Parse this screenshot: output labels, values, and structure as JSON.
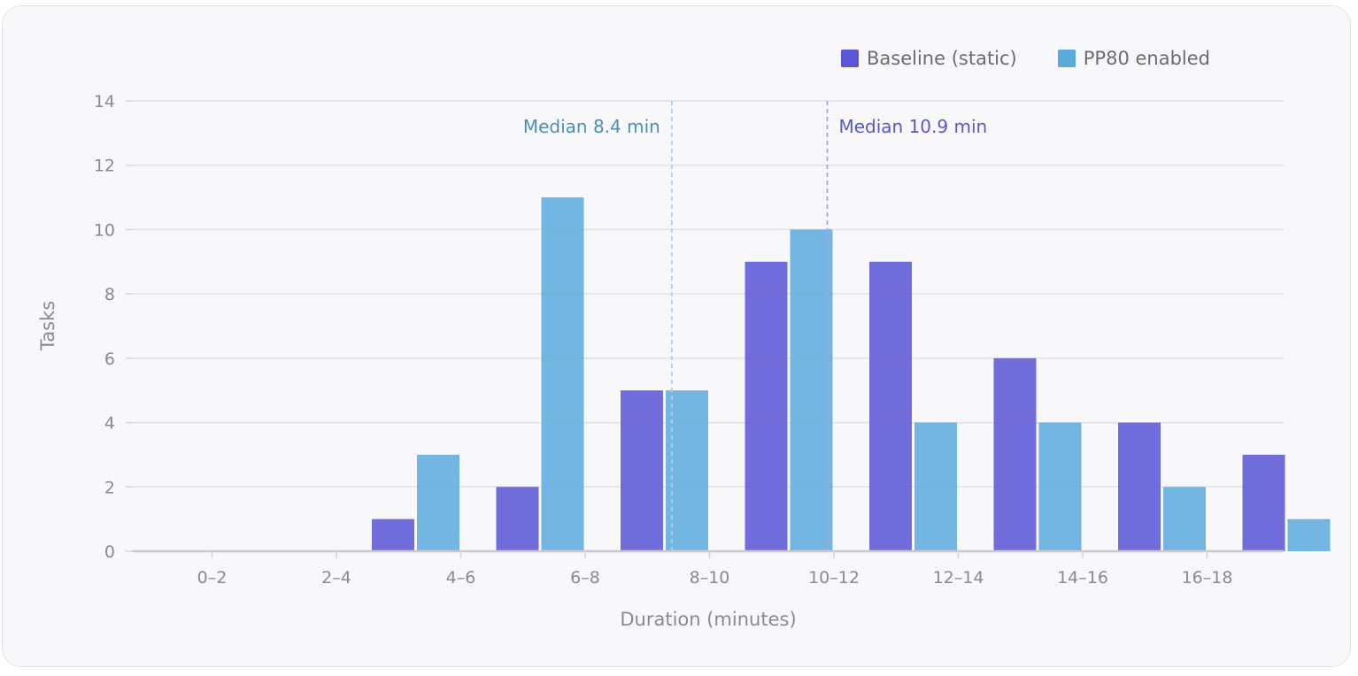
{
  "chart_data": {
    "type": "bar",
    "title": "",
    "xlabel": "Duration (minutes)",
    "ylabel": "Tasks",
    "categories": [
      "0–2",
      "2–4",
      "4–6",
      "6–8",
      "8–10",
      "10–12",
      "12–14",
      "14–16",
      "16–18"
    ],
    "series": [
      {
        "name": "Baseline (static)",
        "color": "#5b55d6",
        "values": [
          0,
          1,
          2,
          5,
          9,
          9,
          6,
          4,
          3
        ]
      },
      {
        "name": "PP80 enabled",
        "color": "#5aaadc",
        "values": [
          0,
          3,
          11,
          5,
          10,
          4,
          4,
          2,
          1
        ]
      }
    ],
    "ylim": [
      0,
      14
    ],
    "yticks": [
      0,
      2,
      4,
      6,
      8,
      10,
      12,
      14
    ],
    "grid": true,
    "legend_position": "top-right",
    "medians": [
      {
        "label": "Median 8.4 min",
        "value": 8.4,
        "color": "#4a90b8",
        "line_color": "#a8d2ec"
      },
      {
        "label": "Median 10.9 min",
        "value": 10.9,
        "color": "#5b55d6",
        "line_color": "#a9a3ec"
      }
    ]
  }
}
